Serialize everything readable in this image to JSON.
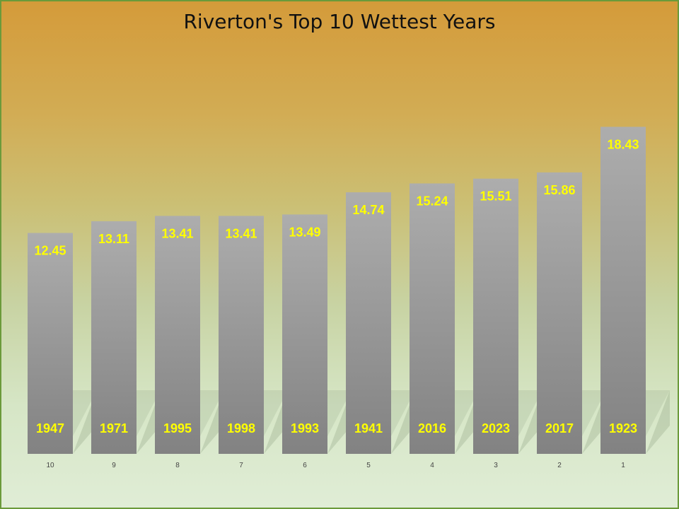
{
  "chart_data": {
    "type": "bar",
    "title": "Riverton's Top 10 Wettest Years",
    "categories": [
      "10",
      "9",
      "8",
      "7",
      "6",
      "5",
      "4",
      "3",
      "2",
      "1"
    ],
    "years": [
      "1947",
      "1971",
      "1995",
      "1998",
      "1993",
      "1941",
      "2016",
      "2023",
      "2017",
      "1923"
    ],
    "values": [
      12.45,
      13.11,
      13.41,
      13.41,
      13.49,
      14.74,
      15.24,
      15.51,
      15.86,
      18.43
    ],
    "value_labels": [
      "12.45",
      "13.11",
      "13.41",
      "13.41",
      "13.49",
      "14.74",
      "15.24",
      "15.51",
      "15.86",
      "18.43"
    ],
    "xlabel": "",
    "ylabel": "",
    "ylim": [
      0,
      20
    ],
    "grid": false,
    "legend": "none",
    "colors": {
      "bar_top": "#adadad",
      "bar_bottom": "#828282",
      "value_label": "#ffff00",
      "year_label": "#ffff00",
      "border": "#6b9a3a"
    }
  }
}
